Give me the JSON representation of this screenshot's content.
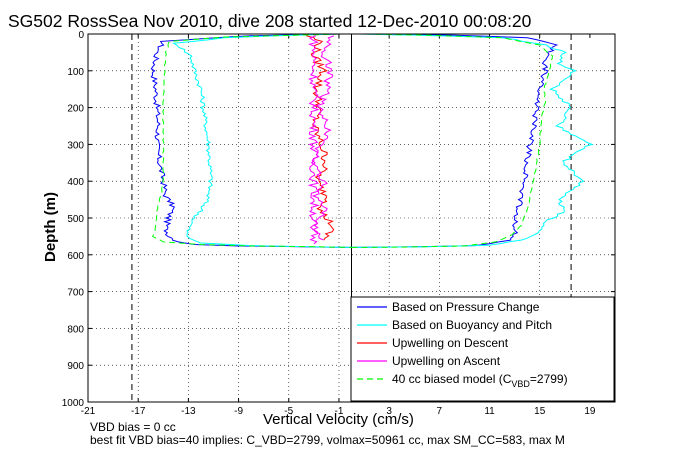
{
  "chart_data": {
    "type": "line",
    "title": "SG502 RossSea Nov 2010, dive 208 started 12-Dec-2010 00:08:20",
    "xlabel": "Vertical Velocity (cm/s)",
    "ylabel": "Depth (m)",
    "xlim": [
      -21,
      21
    ],
    "ylim": [
      1000,
      0
    ],
    "y_reversed": true,
    "grid": true,
    "xticks": [
      "-21",
      "-17",
      "-13",
      "-9",
      "-5",
      "-1",
      "3",
      "7",
      "11",
      "15",
      "19"
    ],
    "yticks": [
      "0",
      "100",
      "200",
      "300",
      "400",
      "500",
      "600",
      "700",
      "800",
      "900",
      "1000"
    ],
    "reference_lines": {
      "dashed_verticals_x": [
        -17.5,
        17.5
      ],
      "solid_vertical_x": 0
    },
    "legend_location": "bottom-right",
    "series": [
      {
        "name": "Based on Pressure Change",
        "color": "#0000ff",
        "descent": {
          "x": [
            -1,
            -8,
            -11,
            -15,
            -15.5,
            -15.8,
            -15.6,
            -15.5,
            -15.4,
            -15.5,
            -15.3,
            -15.0,
            -14.8,
            -14.2,
            -14.6,
            -14.8,
            -14.5,
            -13.8,
            -12.5,
            -9.0,
            -4.0,
            0
          ],
          "y": [
            0,
            5,
            10,
            20,
            50,
            100,
            150,
            200,
            250,
            300,
            350,
            400,
            440,
            470,
            500,
            530,
            550,
            565,
            572,
            576,
            578,
            580
          ]
        },
        "ascent": {
          "x": [
            0,
            5,
            10,
            12.5,
            13.2,
            13.0,
            13.2,
            13.5,
            13.8,
            14.0,
            14.2,
            14.5,
            14.8,
            15.0,
            15.2,
            15.5,
            15.3,
            15.8,
            16.2,
            14.0,
            8.0,
            1.0
          ],
          "y": [
            580,
            578,
            575,
            560,
            540,
            510,
            480,
            450,
            400,
            350,
            300,
            250,
            200,
            150,
            120,
            100,
            80,
            50,
            30,
            10,
            3,
            0
          ]
        }
      },
      {
        "name": "Based on Buoyancy and Pitch",
        "color": "#00ffff",
        "descent": {
          "x": [
            -1,
            -6,
            -10,
            -14,
            -12.8,
            -12.5,
            -12.0,
            -11.8,
            -11.6,
            -11.4,
            -11.3,
            -11.2,
            -11.5,
            -12.0,
            -12.5,
            -13.0,
            -13.2,
            -12.0,
            -8.0,
            -3.0,
            0
          ],
          "y": [
            0,
            5,
            10,
            25,
            60,
            100,
            150,
            200,
            250,
            300,
            350,
            400,
            450,
            480,
            500,
            530,
            550,
            568,
            575,
            578,
            580
          ]
        },
        "ascent": {
          "x": [
            0,
            6,
            11,
            13.5,
            15.0,
            15.5,
            17.0,
            16.5,
            18.5,
            16.8,
            19.0,
            16.5,
            17.5,
            16.0,
            17.8,
            16.5,
            17.0,
            15.5,
            12.0,
            5.0,
            0.5
          ],
          "y": [
            580,
            578,
            574,
            560,
            540,
            510,
            480,
            450,
            400,
            350,
            300,
            250,
            200,
            150,
            100,
            80,
            50,
            30,
            10,
            3,
            0
          ]
        }
      },
      {
        "name": "Upwelling on Descent",
        "color": "#ff0000",
        "descent": {
          "x": [
            -3.5,
            -2.5,
            -3.0,
            -2.2,
            -2.8,
            -2.6,
            -3.0,
            -2.4,
            -2.0,
            -2.8,
            -1.8,
            -2.5,
            -1.5,
            -2.2
          ],
          "y": [
            5,
            20,
            60,
            100,
            150,
            200,
            250,
            300,
            350,
            400,
            450,
            480,
            520,
            560
          ]
        }
      },
      {
        "name": "Upwelling on Ascent",
        "color": "#ff00ff",
        "descent": {
          "x": [
            -3.0,
            -3.0,
            -3.0,
            -3.0,
            -3.0,
            -3.0
          ],
          "y": [
            0,
            100,
            200,
            300,
            400,
            570
          ]
        },
        "ascent": {
          "x": [
            -2.5,
            -3.2,
            -2.0,
            -2.8,
            -2.2,
            -3.0,
            -2.4,
            -1.8,
            -2.6,
            -2.0,
            -1.6,
            -2.2,
            -1.4
          ],
          "y": [
            560,
            520,
            480,
            440,
            400,
            350,
            300,
            250,
            200,
            150,
            100,
            50,
            5
          ]
        }
      },
      {
        "name": "40 cc biased model (C_VBD=2799)",
        "color": "#00ff00",
        "descent": {
          "x": [
            -1,
            -4,
            -10,
            -14.5,
            -14.8,
            -14.9,
            -15.0,
            -15.0,
            -15.0,
            -15.2,
            -15.5,
            -15.6,
            -15.8,
            -15.0,
            -12.0,
            -8.0,
            -3.0,
            0
          ],
          "y": [
            0,
            3,
            8,
            20,
            50,
            100,
            200,
            300,
            400,
            440,
            480,
            520,
            550,
            565,
            572,
            576,
            578,
            580
          ]
        },
        "ascent": {
          "x": [
            0,
            4,
            9,
            11.5,
            12.8,
            13.5,
            14.0,
            14.5,
            15.0,
            15.2,
            15.5,
            15.3,
            15.6,
            15.8,
            16.0,
            15.0,
            12.0,
            6.0,
            1.0
          ],
          "y": [
            580,
            579,
            576,
            565,
            545,
            520,
            480,
            400,
            300,
            220,
            180,
            150,
            120,
            100,
            60,
            30,
            10,
            3,
            0
          ]
        }
      }
    ]
  },
  "legend": {
    "items": [
      {
        "label": "Based on Pressure Change",
        "color": "#0000ff",
        "dash": ""
      },
      {
        "label": "Based on Buoyancy and Pitch",
        "color": "#00ffff",
        "dash": ""
      },
      {
        "label": "Upwelling on Descent",
        "color": "#ff0000",
        "dash": ""
      },
      {
        "label": "Upwelling on Ascent",
        "color": "#ff00ff",
        "dash": ""
      },
      {
        "label": "40 cc biased model (C",
        "sub": "VBD",
        "tail": "=2799)",
        "color": "#00ff00",
        "dash": "6,4"
      }
    ]
  },
  "footer": {
    "line1": "VBD bias = 0 cc",
    "line2": "best fit VBD bias=40 implies: C_VBD=2799, volmax=50961 cc, max SM_CC=583, max M"
  }
}
